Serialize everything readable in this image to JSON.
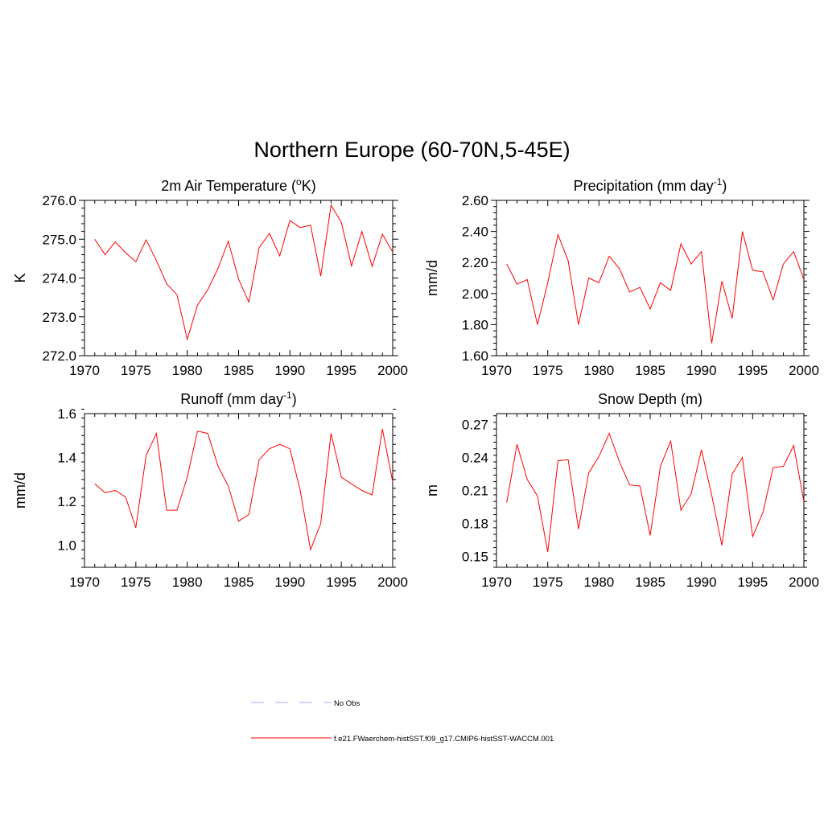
{
  "figure": {
    "title": "Northern Europe (60-70N,5-45E)",
    "legend": [
      {
        "label": "No Obs",
        "color": "#a8a8ee",
        "style": "dashed"
      },
      {
        "label": "f.e21.FWaerchem-histSST.f09_g17.CMIP6-histSST-WACCM.001",
        "color": "#ff0000",
        "style": "solid"
      }
    ]
  },
  "chart_data": [
    {
      "type": "line",
      "title": "2m Air Temperature (",
      "title_sup": "o",
      "title_tail": "K)",
      "ylabel": "K",
      "xlim": [
        1970,
        2000
      ],
      "ylim": [
        272.0,
        276.0
      ],
      "x_ticks": [
        1970,
        1975,
        1980,
        1985,
        1990,
        1995,
        2000
      ],
      "y_ticks": [
        "272.0",
        "273.0",
        "274.0",
        "275.0",
        "276.0"
      ],
      "y_tick_values": [
        272.0,
        273.0,
        274.0,
        275.0,
        276.0
      ],
      "color": "#ff0000",
      "x": [
        1971,
        1972,
        1973,
        1974,
        1975,
        1976,
        1977,
        1978,
        1979,
        1980,
        1981,
        1982,
        1983,
        1984,
        1985,
        1986,
        1987,
        1988,
        1989,
        1990,
        1991,
        1992,
        1993,
        1994,
        1995,
        1996,
        1997,
        1998,
        1999,
        2000
      ],
      "values": [
        275.0,
        274.6,
        274.93,
        274.65,
        274.42,
        274.98,
        274.45,
        273.85,
        273.57,
        272.42,
        273.3,
        273.7,
        274.25,
        274.95,
        273.97,
        273.38,
        274.78,
        275.15,
        274.57,
        275.48,
        275.3,
        275.36,
        274.05,
        275.88,
        275.43,
        274.31,
        275.2,
        274.3,
        275.13,
        274.67
      ]
    },
    {
      "type": "line",
      "title": "Precipitation (mm day",
      "title_sup": "-1",
      "title_tail": ")",
      "ylabel": "mm/d",
      "xlim": [
        1970,
        2000
      ],
      "ylim": [
        1.6,
        2.6
      ],
      "x_ticks": [
        1970,
        1975,
        1980,
        1985,
        1990,
        1995,
        2000
      ],
      "y_ticks": [
        "1.60",
        "1.80",
        "2.00",
        "2.20",
        "2.40",
        "2.60"
      ],
      "y_tick_values": [
        1.6,
        1.8,
        2.0,
        2.2,
        2.4,
        2.6
      ],
      "color": "#ff0000",
      "x": [
        1971,
        1972,
        1973,
        1974,
        1975,
        1976,
        1977,
        1978,
        1979,
        1980,
        1981,
        1982,
        1983,
        1984,
        1985,
        1986,
        1987,
        1988,
        1989,
        1990,
        1991,
        1992,
        1993,
        1994,
        1995,
        1996,
        1997,
        1998,
        1999,
        2000
      ],
      "values": [
        2.19,
        2.06,
        2.09,
        1.8,
        2.07,
        2.38,
        2.21,
        1.8,
        2.1,
        2.07,
        2.24,
        2.16,
        2.01,
        2.04,
        1.9,
        2.07,
        2.02,
        2.32,
        2.19,
        2.27,
        1.68,
        2.08,
        1.84,
        2.4,
        2.15,
        2.14,
        1.96,
        2.19,
        2.27,
        2.09
      ]
    },
    {
      "type": "line",
      "title": "Runoff (mm day",
      "title_sup": "-1",
      "title_tail": ")",
      "ylabel": "mm/d",
      "xlim": [
        1970,
        2000
      ],
      "ylim": [
        0.9,
        1.6
      ],
      "x_ticks": [
        1970,
        1975,
        1980,
        1985,
        1990,
        1995,
        2000
      ],
      "y_ticks": [
        "1.0",
        "1.2",
        "1.4",
        "1.6"
      ],
      "y_tick_values": [
        1.0,
        1.2,
        1.4,
        1.6
      ],
      "color": "#ff0000",
      "x": [
        1971,
        1972,
        1973,
        1974,
        1975,
        1976,
        1977,
        1978,
        1979,
        1980,
        1981,
        1982,
        1983,
        1984,
        1985,
        1986,
        1987,
        1988,
        1989,
        1990,
        1991,
        1992,
        1993,
        1994,
        1995,
        1996,
        1997,
        1998,
        1999,
        2000
      ],
      "values": [
        1.28,
        1.24,
        1.25,
        1.22,
        1.08,
        1.41,
        1.51,
        1.16,
        1.16,
        1.31,
        1.52,
        1.51,
        1.36,
        1.27,
        1.11,
        1.14,
        1.39,
        1.44,
        1.46,
        1.44,
        1.25,
        0.98,
        1.1,
        1.51,
        1.31,
        1.28,
        1.25,
        1.23,
        1.53,
        1.29
      ]
    },
    {
      "type": "line",
      "title": "Snow Depth (m)",
      "title_sup": "",
      "title_tail": "",
      "ylabel": "m",
      "xlim": [
        1970,
        2000
      ],
      "ylim": [
        0.14,
        0.28
      ],
      "x_ticks": [
        1970,
        1975,
        1980,
        1985,
        1990,
        1995,
        2000
      ],
      "y_ticks": [
        "0.15",
        "0.18",
        "0.21",
        "0.24",
        "0.27"
      ],
      "y_tick_values": [
        0.15,
        0.18,
        0.21,
        0.24,
        0.27
      ],
      "color": "#ff0000",
      "x": [
        1971,
        1972,
        1973,
        1974,
        1975,
        1976,
        1977,
        1978,
        1979,
        1980,
        1981,
        1982,
        1983,
        1984,
        1985,
        1986,
        1987,
        1988,
        1989,
        1990,
        1991,
        1992,
        1993,
        1994,
        1995,
        1996,
        1997,
        1998,
        1999,
        2000
      ],
      "values": [
        0.199,
        0.252,
        0.22,
        0.205,
        0.154,
        0.237,
        0.238,
        0.175,
        0.226,
        0.241,
        0.262,
        0.236,
        0.215,
        0.214,
        0.169,
        0.232,
        0.255,
        0.192,
        0.207,
        0.247,
        0.206,
        0.16,
        0.225,
        0.24,
        0.168,
        0.19,
        0.231,
        0.232,
        0.251,
        0.2
      ]
    }
  ]
}
